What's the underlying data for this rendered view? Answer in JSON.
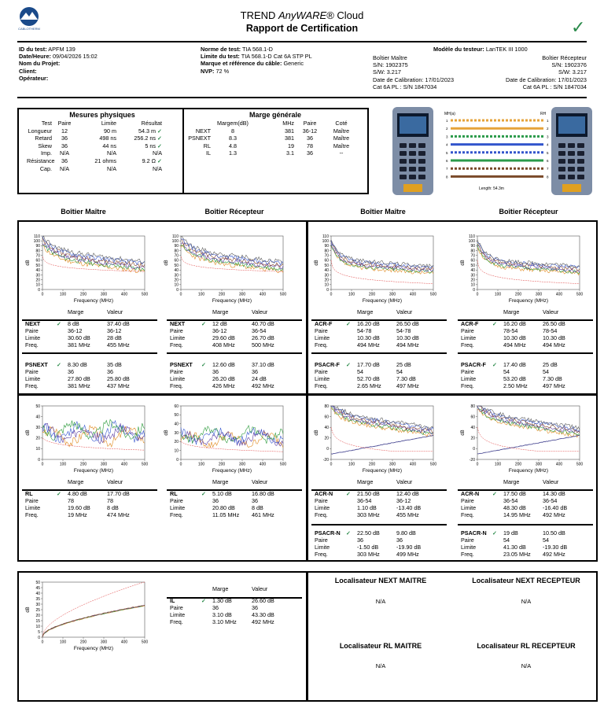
{
  "header": {
    "brand": "CABLOTHERM",
    "title_pre": "TREND ",
    "title_em": "AnyWARE",
    "title_post": "® Cloud",
    "subtitle": "Rapport de Certification"
  },
  "info": {
    "left": [
      [
        "ID du test:",
        "APFM 139"
      ],
      [
        "Date/Heure:",
        "09/04/2026 15:02"
      ],
      [
        "Nom du Projet:",
        ""
      ],
      [
        "Client:",
        ""
      ],
      [
        "Opérateur:",
        ""
      ]
    ],
    "mid": [
      [
        "Norme de test:",
        "TIA 568.1-D"
      ],
      [
        "Limite du test:",
        "TIA 568.1-D Cat 6A STP PL"
      ],
      [
        "Marque et référence du câble:",
        "Generic"
      ],
      [
        "NVP:",
        "72 %"
      ]
    ],
    "model_label": "Modèle du testeur:",
    "model_value": "LanTEK III 1000",
    "master": [
      "Boîtier Maître",
      "S/N: 1902375",
      "S/W: 3.217",
      "Date de Calibration: 17/01/2023",
      "Cat 6A PL : S/N 1847034"
    ],
    "remote": [
      "Boîtier Récepteur",
      "S/N: 1902376",
      "S/W: 3.217",
      "Date de Calibration: 17/01/2023",
      "Cat 6A PL : S/N 1847034"
    ]
  },
  "mesures": {
    "title": "Mesures physiques",
    "head": [
      "Test",
      "Paire",
      "Limite",
      "Résultat"
    ],
    "rows": [
      [
        "Longueur",
        "12",
        "90 m",
        "54.3 m",
        "ok"
      ],
      [
        "Retard",
        "36",
        "498 ns",
        "256.2 ns",
        "ok"
      ],
      [
        "Skew",
        "36",
        "44 ns",
        "5 ns",
        "ok"
      ],
      [
        "Imp.",
        "N/A",
        "N/A",
        "N/A",
        ""
      ],
      [
        "Résistance",
        "36",
        "21 ohms",
        "9.2 Ω",
        "ok"
      ],
      [
        "Cap.",
        "N/A",
        "N/A",
        "N/A",
        ""
      ]
    ]
  },
  "marge": {
    "title": "Marge générale",
    "head": [
      "",
      "Margem(dB)",
      "MHz",
      "Paire",
      "Coté"
    ],
    "rows": [
      [
        "NEXT",
        "8",
        "381",
        "36-12",
        "Maître"
      ],
      [
        "PSNEXT",
        "8.3",
        "381",
        "36",
        "Maître"
      ],
      [
        "RL",
        "4.8",
        "19",
        "78",
        "Maître"
      ],
      [
        "IL",
        "1.3",
        "3.1",
        "36",
        "--"
      ]
    ]
  },
  "wiremap": {
    "length": "Length: 54.3m",
    "left_head": "MH(a)",
    "right_head": "RH",
    "colors": [
      "#e6a33a",
      "#e6a33a",
      "#2a9a4a",
      "#3355cc",
      "#3355cc",
      "#2a9a4a",
      "#7a4a2a",
      "#7a4a2a"
    ],
    "dash": [
      true,
      false,
      true,
      false,
      true,
      false,
      true,
      false
    ]
  },
  "col_heads": [
    "Boîtier Maître",
    "Boîtier Récepteur",
    "Boîtier Maître",
    "Boîtier Récepteur"
  ],
  "common": {
    "marge": "Marge",
    "valeur": "Valeur",
    "paire": "Paire",
    "limite": "Limite",
    "freq": "Freq.",
    "xlabel": "Frequency (MHz)",
    "ylabel": "dB",
    "xticks": [
      "0",
      "100",
      "200",
      "300",
      "400",
      "500"
    ]
  },
  "panels": [
    {
      "name": "NEXT",
      "m": "8 dB",
      "v": "37.40 dB",
      "p": [
        "36-12",
        "36-12"
      ],
      "l": [
        "30.60 dB",
        "28 dB"
      ],
      "f": [
        "381 MHz",
        "455 MHz"
      ]
    },
    {
      "name": "NEXT",
      "m": "12 dB",
      "v": "40.70 dB",
      "p": [
        "36-12",
        "36-54"
      ],
      "l": [
        "29.60 dB",
        "26.70 dB"
      ],
      "f": [
        "408 MHz",
        "500 MHz"
      ]
    },
    {
      "name": "ACR-F",
      "m": "16.20 dB",
      "v": "26.50 dB",
      "p": [
        "54-78",
        "54-78"
      ],
      "l": [
        "10.30 dB",
        "10.30 dB"
      ],
      "f": [
        "494 MHz",
        "494 MHz"
      ]
    },
    {
      "name": "ACR-F",
      "m": "16.20 dB",
      "v": "26.50 dB",
      "p": [
        "78-54",
        "78-54"
      ],
      "l": [
        "10.30 dB",
        "10.30 dB"
      ],
      "f": [
        "494 MHz",
        "494 MHz"
      ]
    },
    {
      "name": "PSNEXT",
      "m": "8.30 dB",
      "v": "35 dB",
      "p": [
        "36",
        "36"
      ],
      "l": [
        "27.80 dB",
        "25.80 dB"
      ],
      "f": [
        "381 MHz",
        "437 MHz"
      ]
    },
    {
      "name": "PSNEXT",
      "m": "12.60 dB",
      "v": "37.10 dB",
      "p": [
        "36",
        "36"
      ],
      "l": [
        "26.20 dB",
        "24 dB"
      ],
      "f": [
        "426 MHz",
        "492 MHz"
      ]
    },
    {
      "name": "PSACR-F",
      "m": "17.70 dB",
      "v": "25 dB",
      "p": [
        "54",
        "54"
      ],
      "l": [
        "52.70 dB",
        "7.30 dB"
      ],
      "f": [
        "2.65 MHz",
        "497 MHz"
      ]
    },
    {
      "name": "PSACR-F",
      "m": "17.40 dB",
      "v": "25 dB",
      "p": [
        "54",
        "54"
      ],
      "l": [
        "53.20 dB",
        "7.30 dB"
      ],
      "f": [
        "2.50 MHz",
        "497 MHz"
      ]
    },
    {
      "name": "RL",
      "m": "4.80 dB",
      "v": "17.70 dB",
      "p": [
        "78",
        "78"
      ],
      "l": [
        "19.60 dB",
        "8 dB"
      ],
      "f": [
        "19 MHz",
        "474 MHz"
      ]
    },
    {
      "name": "RL",
      "m": "5.10 dB",
      "v": "16.80 dB",
      "p": [
        "36",
        "36"
      ],
      "l": [
        "20.80 dB",
        "8 dB"
      ],
      "f": [
        "11.05 MHz",
        "461 MHz"
      ]
    },
    {
      "name": "ACR-N",
      "m": "21.50 dB",
      "v": "12.40 dB",
      "p": [
        "36-54",
        "36-12"
      ],
      "l": [
        "1.10 dB",
        "-13.40 dB"
      ],
      "f": [
        "303 MHz",
        "455 MHz"
      ]
    },
    {
      "name": "ACR-N",
      "m": "17.50 dB",
      "v": "14.30 dB",
      "p": [
        "36-54",
        "36-54"
      ],
      "l": [
        "48.30 dB",
        "-16.40 dB"
      ],
      "f": [
        "14.95 MHz",
        "492 MHz"
      ]
    },
    {
      "name": "PSACR-N",
      "m": "22.50 dB",
      "v": "9.80 dB",
      "p": [
        "36",
        "36"
      ],
      "l": [
        "-1.50 dB",
        "-19.90 dB"
      ],
      "f": [
        "303 MHz",
        "499 MHz"
      ]
    },
    {
      "name": "PSACR-N",
      "m": "19 dB",
      "v": "10.50 dB",
      "p": [
        "54",
        "54"
      ],
      "l": [
        "41.30 dB",
        "-19.30 dB"
      ],
      "f": [
        "23.05 MHz",
        "492 MHz"
      ]
    },
    {
      "name": "IL",
      "m": "1.30 dB",
      "v": "26.60 dB",
      "p": [
        "36",
        "36"
      ],
      "l": [
        "3.10 dB",
        "43.30 dB"
      ],
      "f": [
        "3.10 MHz",
        "492 MHz"
      ]
    }
  ],
  "chart_data": [
    {
      "type": "line",
      "panel": "NEXT maître",
      "ylim": [
        0,
        110
      ],
      "yticks": [
        "0",
        "10",
        "20",
        "30",
        "40",
        "50",
        "60",
        "70",
        "80",
        "90",
        "100",
        "110"
      ]
    },
    {
      "type": "line",
      "panel": "NEXT récepteur",
      "ylim": [
        0,
        110
      ],
      "yticks": [
        "0",
        "10",
        "20",
        "30",
        "40",
        "50",
        "60",
        "70",
        "80",
        "90",
        "100",
        "110"
      ]
    },
    {
      "type": "line",
      "panel": "ACR-F maître",
      "ylim": [
        0,
        110
      ],
      "yticks": [
        "0",
        "10",
        "20",
        "30",
        "40",
        "50",
        "60",
        "70",
        "80",
        "90",
        "100",
        "110"
      ]
    },
    {
      "type": "line",
      "panel": "ACR-F récepteur",
      "ylim": [
        0,
        110
      ],
      "yticks": [
        "0",
        "10",
        "20",
        "30",
        "40",
        "50",
        "60",
        "70",
        "80",
        "90",
        "100",
        "110"
      ]
    },
    {
      "type": "line",
      "panel": "RL maître",
      "ylim": [
        0,
        50
      ],
      "yticks": [
        "0",
        "10",
        "20",
        "30",
        "40",
        "50"
      ]
    },
    {
      "type": "line",
      "panel": "RL récepteur",
      "ylim": [
        0,
        60
      ],
      "yticks": [
        "0",
        "10",
        "20",
        "30",
        "40",
        "50",
        "60"
      ]
    },
    {
      "type": "line",
      "panel": "ACR-N maître",
      "ylim": [
        -20,
        80
      ],
      "yticks": [
        "-20",
        "0",
        "20",
        "40",
        "60",
        "80"
      ]
    },
    {
      "type": "line",
      "panel": "ACR-N récepteur",
      "ylim": [
        -20,
        80
      ],
      "yticks": [
        "-20",
        "0",
        "20",
        "40",
        "60",
        "80"
      ]
    },
    {
      "type": "line",
      "panel": "IL",
      "ylim": [
        0,
        50
      ],
      "yticks": [
        "0",
        "5",
        "10",
        "15",
        "20",
        "25",
        "30",
        "35",
        "40",
        "45",
        "50"
      ]
    }
  ],
  "loc": [
    "Localisateur NEXT MAITRE",
    "Localisateur NEXT RECEPTEUR",
    "Localisateur RL MAITRE",
    "Localisateur RL RECEPTEUR"
  ],
  "na": "N/A"
}
